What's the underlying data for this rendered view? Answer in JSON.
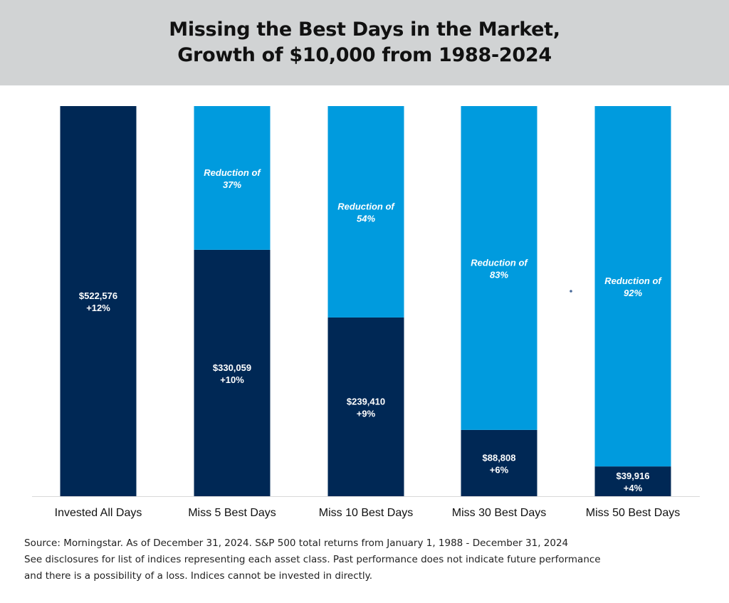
{
  "title": {
    "line1": "Missing the Best Days in the Market,",
    "line2": "Growth of $10,000 from 1988-2024"
  },
  "chart_data": {
    "type": "bar",
    "stacked": true,
    "categories": [
      "Invested All Days",
      "Miss 5 Best Days",
      "Miss 10 Best Days",
      "Miss 30 Best Days",
      "Miss 50 Best Days"
    ],
    "series": [
      {
        "values": [
          522576,
          330059,
          239410,
          88808,
          39916
        ],
        "labels": [
          "$522,576",
          "$330,059",
          "$239,410",
          "$88,808",
          "$39,916"
        ],
        "returns": [
          "+12%",
          "+10%",
          "+9%",
          "+6%",
          "+4%"
        ],
        "color": "#002855"
      },
      {
        "values": [
          0,
          192517,
          283166,
          433768,
          482660
        ],
        "labels": [
          "",
          "Reduction of",
          "Reduction of",
          "Reduction of",
          "Reduction of"
        ],
        "percents": [
          "",
          "37%",
          "54%",
          "83%",
          "92%"
        ],
        "color": "#009bde"
      }
    ],
    "ylim": [
      0,
      522576
    ],
    "grid": false,
    "legend": "none"
  },
  "footnote": {
    "line1": "Source: Morningstar. As of December 31, 2024. S&P 500 total returns from January 1, 1988 - December 31, 2024",
    "line2": "See disclosures for list of indices representing each asset class. Past performance does not indicate future performance",
    "line3": "and there is a possibility of a loss. Indices cannot be invested in directly."
  }
}
